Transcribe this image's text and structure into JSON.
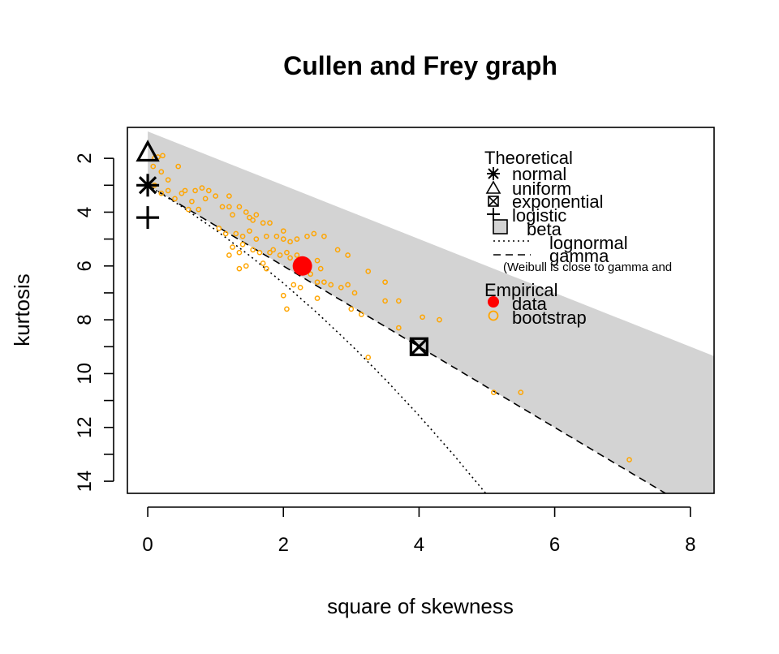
{
  "chart_data": {
    "type": "scatter",
    "title": "Cullen and Frey graph",
    "xlabel": "square of skewness",
    "ylabel": "kurtosis",
    "xlim": [
      -0.3,
      8.35
    ],
    "ylim": [
      0.85,
      14.45
    ],
    "y_reversed": true,
    "x_ticks": [
      0,
      2,
      4,
      6,
      8
    ],
    "y_ticks": [
      2,
      4,
      6,
      8,
      10,
      12,
      14
    ],
    "y_minor_ticks": [
      3,
      5,
      7,
      9,
      11,
      13
    ],
    "colors": {
      "beta_region": "#d3d3d3",
      "data": "#ff0000",
      "bootstrap": "#ffa500",
      "ink": "#000000"
    },
    "legend": {
      "theoretical_heading": "Theoretical",
      "theoretical_items": [
        {
          "label": "normal",
          "symbol": "asterisk"
        },
        {
          "label": "uniform",
          "symbol": "triangle"
        },
        {
          "label": "exponential",
          "symbol": "boxed-x"
        },
        {
          "label": "logistic",
          "symbol": "plus"
        },
        {
          "label": "beta",
          "symbol": "grey-square"
        },
        {
          "label": "lognormal",
          "symbol": "dotted-line"
        },
        {
          "label": "gamma",
          "symbol": "dashed-line"
        }
      ],
      "note": "(Weibull is close to gamma and",
      "empirical_heading": "Empirical",
      "empirical_items": [
        {
          "label": "data",
          "symbol": "red-dot"
        },
        {
          "label": "bootstrap",
          "symbol": "orange-circle"
        }
      ]
    },
    "theoretical_points": [
      {
        "name": "uniform",
        "x": 0,
        "y": 1.8
      },
      {
        "name": "normal",
        "x": 0,
        "y": 3
      },
      {
        "name": "logistic",
        "x": 0,
        "y": 4.2
      },
      {
        "name": "exponential",
        "x": 4,
        "y": 9
      }
    ],
    "beta_region": {
      "upper": [
        [
          0,
          1
        ],
        [
          8.35,
          9.35
        ]
      ],
      "lower": [
        [
          0,
          3
        ],
        [
          8.35,
          15.525
        ]
      ]
    },
    "gamma_line": [
      [
        0,
        3
      ],
      [
        8.35,
        15.525
      ]
    ],
    "lognormal_line": [
      [
        0,
        3
      ],
      [
        0.5,
        3.79
      ],
      [
        1,
        4.66
      ],
      [
        1.5,
        5.61
      ],
      [
        2,
        6.64
      ],
      [
        2.5,
        7.75
      ],
      [
        3,
        8.94
      ],
      [
        3.5,
        10.21
      ],
      [
        4,
        11.56
      ],
      [
        4.5,
        12.99
      ],
      [
        5,
        14.5
      ],
      [
        5.3,
        15.43
      ]
    ],
    "data_point": {
      "x": 2.28,
      "y": 6.0
    },
    "bootstrap": [
      [
        0.1,
        2.0
      ],
      [
        0.15,
        1.95
      ],
      [
        0.22,
        1.9
      ],
      [
        0.08,
        2.3
      ],
      [
        0.2,
        2.5
      ],
      [
        0.3,
        2.8
      ],
      [
        0.45,
        2.3
      ],
      [
        0.1,
        3.0
      ],
      [
        0.2,
        3.3
      ],
      [
        0.3,
        3.2
      ],
      [
        0.4,
        3.5
      ],
      [
        0.5,
        3.3
      ],
      [
        0.55,
        3.2
      ],
      [
        0.65,
        3.6
      ],
      [
        0.7,
        3.2
      ],
      [
        0.8,
        3.1
      ],
      [
        0.9,
        3.2
      ],
      [
        0.85,
        3.5
      ],
      [
        1.0,
        3.4
      ],
      [
        0.75,
        3.9
      ],
      [
        0.6,
        3.9
      ],
      [
        1.1,
        3.8
      ],
      [
        1.2,
        3.4
      ],
      [
        1.2,
        3.8
      ],
      [
        1.25,
        4.1
      ],
      [
        1.35,
        3.8
      ],
      [
        1.45,
        4.0
      ],
      [
        1.5,
        4.2
      ],
      [
        1.6,
        4.1
      ],
      [
        1.55,
        4.3
      ],
      [
        1.7,
        4.4
      ],
      [
        1.8,
        4.4
      ],
      [
        1.05,
        4.6
      ],
      [
        1.15,
        4.8
      ],
      [
        1.3,
        4.8
      ],
      [
        1.4,
        4.9
      ],
      [
        1.5,
        4.7
      ],
      [
        1.6,
        5.0
      ],
      [
        1.75,
        4.9
      ],
      [
        1.9,
        4.9
      ],
      [
        2.0,
        4.7
      ],
      [
        2.0,
        5.0
      ],
      [
        2.1,
        5.1
      ],
      [
        2.2,
        5.0
      ],
      [
        1.4,
        5.2
      ],
      [
        1.25,
        5.3
      ],
      [
        1.35,
        5.5
      ],
      [
        1.2,
        5.6
      ],
      [
        1.55,
        5.4
      ],
      [
        1.65,
        5.5
      ],
      [
        1.8,
        5.5
      ],
      [
        1.85,
        5.4
      ],
      [
        1.95,
        5.6
      ],
      [
        2.05,
        5.5
      ],
      [
        2.1,
        5.7
      ],
      [
        2.2,
        5.6
      ],
      [
        1.7,
        5.9
      ],
      [
        1.45,
        6.0
      ],
      [
        1.35,
        6.1
      ],
      [
        1.75,
        6.1
      ],
      [
        2.35,
        4.9
      ],
      [
        2.45,
        4.8
      ],
      [
        2.6,
        4.9
      ],
      [
        2.8,
        5.4
      ],
      [
        2.95,
        5.6
      ],
      [
        2.5,
        5.8
      ],
      [
        2.55,
        6.1
      ],
      [
        2.4,
        6.3
      ],
      [
        2.5,
        6.6
      ],
      [
        2.6,
        6.6
      ],
      [
        2.7,
        6.7
      ],
      [
        2.85,
        6.8
      ],
      [
        2.95,
        6.7
      ],
      [
        3.05,
        7.0
      ],
      [
        2.15,
        6.7
      ],
      [
        2.25,
        6.8
      ],
      [
        2.0,
        7.1
      ],
      [
        2.5,
        7.2
      ],
      [
        2.05,
        7.6
      ],
      [
        3.0,
        7.6
      ],
      [
        3.15,
        7.8
      ],
      [
        3.25,
        6.2
      ],
      [
        3.5,
        6.6
      ],
      [
        3.5,
        7.3
      ],
      [
        3.7,
        7.3
      ],
      [
        3.7,
        8.3
      ],
      [
        4.05,
        7.9
      ],
      [
        4.3,
        8.0
      ],
      [
        3.25,
        9.4
      ],
      [
        5.1,
        10.7
      ],
      [
        5.5,
        10.7
      ],
      [
        7.1,
        13.2
      ]
    ]
  }
}
